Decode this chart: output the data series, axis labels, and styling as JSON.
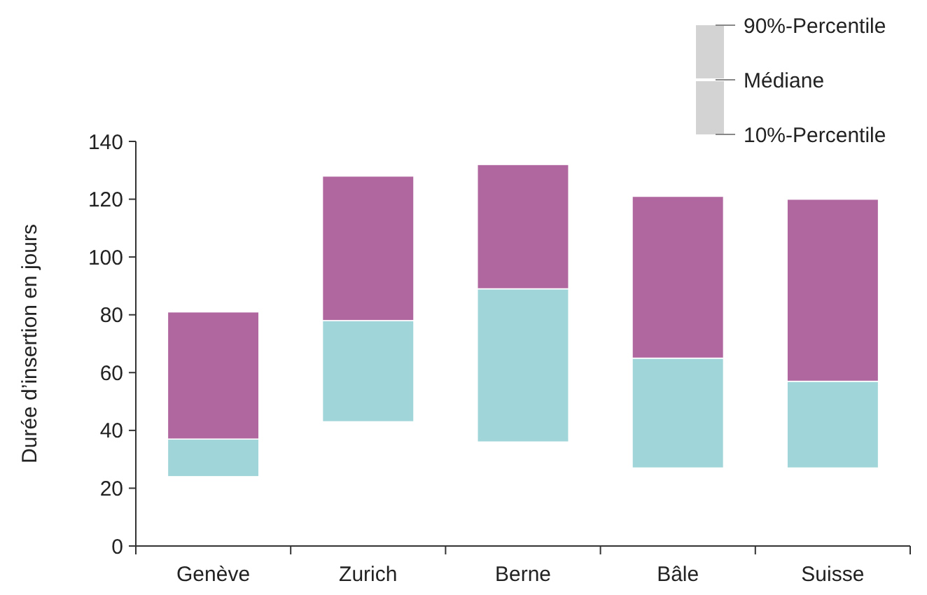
{
  "chart_data": {
    "type": "bar",
    "ylabel": "Durée d’insertion en jours",
    "categories": [
      "Genève",
      "Zurich",
      "Berne",
      "Bâle",
      "Suisse"
    ],
    "series": [
      {
        "color": "#a0d5d9",
        "base": [
          24,
          43,
          36,
          27,
          27
        ],
        "values": [
          13,
          35,
          53,
          38,
          30
        ]
      },
      {
        "color": "#b0669f",
        "base": [
          37,
          78,
          89,
          65,
          57
        ],
        "values": [
          44,
          50,
          43,
          56,
          63
        ]
      }
    ],
    "ylim": [
      0,
      140
    ],
    "yticks": [
      0,
      20,
      40,
      60,
      80,
      100,
      120,
      140
    ],
    "annotations": [
      "90%-Percentile",
      "Médiane",
      "10%-Percentile"
    ]
  }
}
